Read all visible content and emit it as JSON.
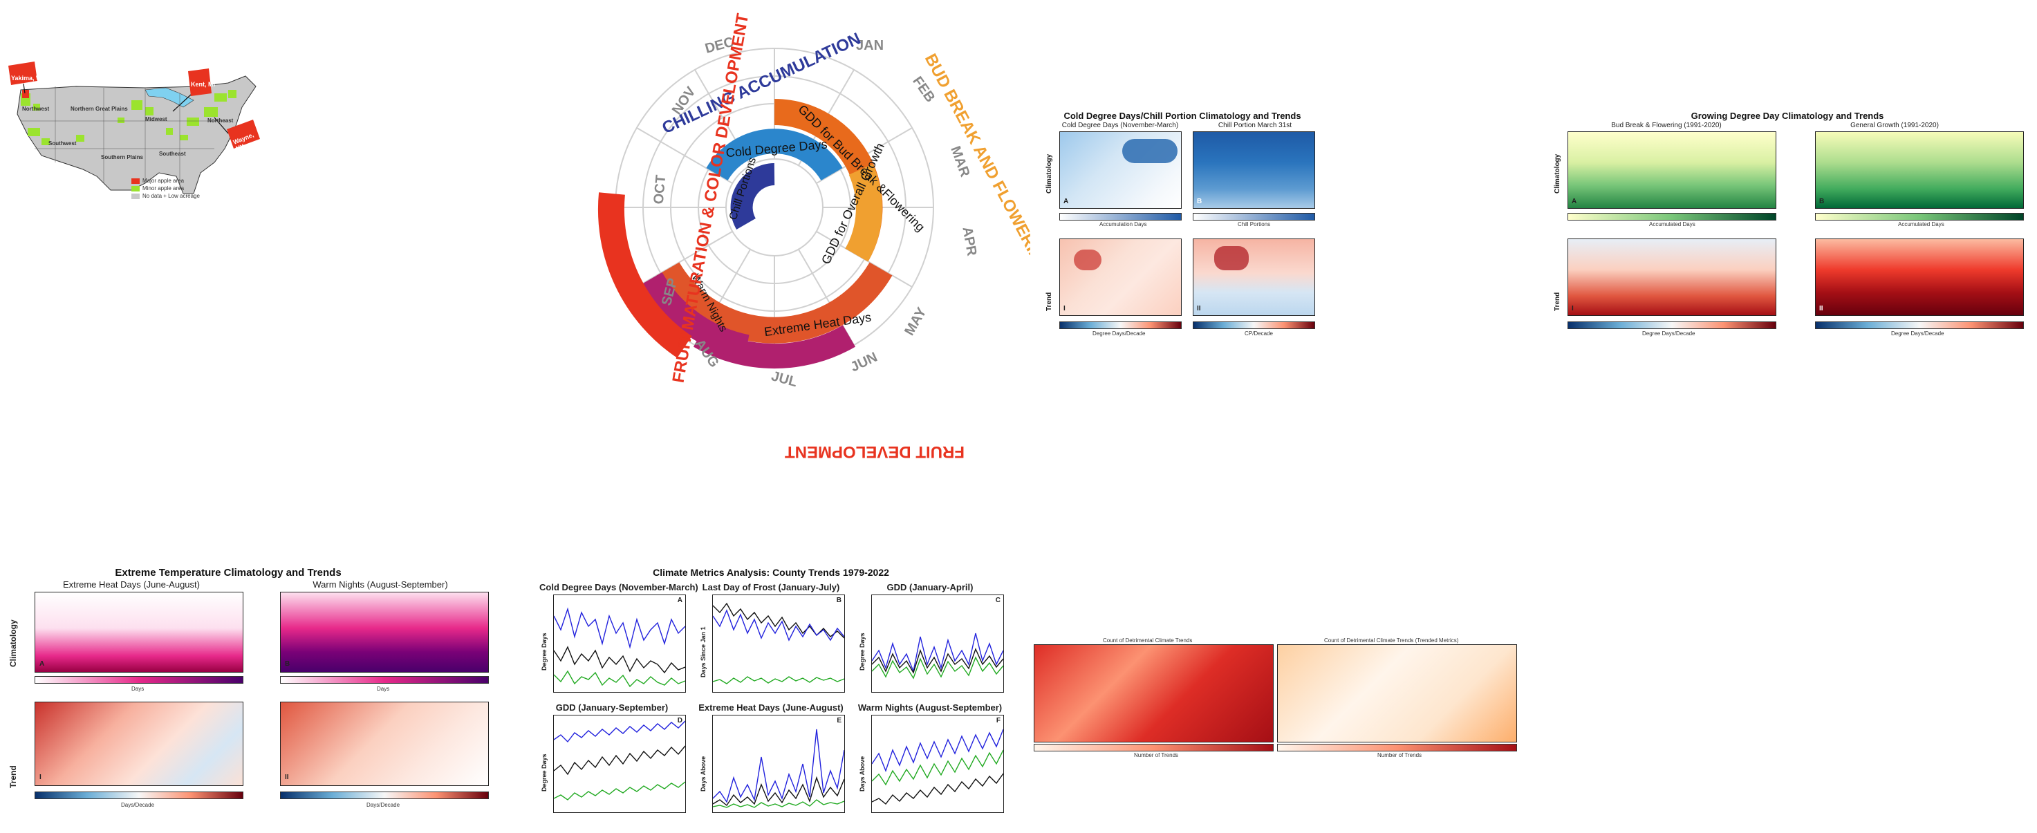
{
  "colors": {
    "red": "#e8331f",
    "lime": "#9be32e",
    "grey": "#c8c8c8",
    "lake": "#7fd1f0",
    "blue_dark": "#1f5aa6",
    "green_dark": "#2a7f3a",
    "purple": "#5b1a6b",
    "orange": "#e65c23",
    "gold": "#f0a030",
    "magenta": "#b0206e"
  },
  "fig1": {
    "region_labels": [
      "Northwest",
      "Northern Great Plains",
      "Midwest",
      "Northeast",
      "Southwest",
      "Southern Plains",
      "Southeast"
    ],
    "callouts": [
      "Yakima, WA",
      "Kent, MI",
      "Wayne, NY"
    ],
    "legend": [
      "Major apple area",
      "Minor apple area",
      "No data + Low acreage"
    ]
  },
  "fig2": {
    "months": [
      "JAN",
      "FEB",
      "MAR",
      "APR",
      "MAY",
      "JUN",
      "JUL",
      "AUG",
      "SEP",
      "OCT",
      "NOV",
      "DEC"
    ],
    "arc_labels": [
      "Chill Portions",
      "Cold Degree Days",
      "GDD for Bud Break &Flowering",
      "GDD for Overall Growth",
      "Extreme Heat Days",
      "Warm Nights"
    ],
    "outer_titles": [
      "CHILLING ACCUMULATION",
      "BUD BREAK AND FLOWERING",
      "FRUIT DEVELOPMENT",
      "FRUIT MATURATION & COLOR DEVELOPMENT"
    ]
  },
  "fig3": {
    "title": "Cold Degree Days/Chill Portion Climatology and Trends",
    "left_title": "Cold Degree Days (November-March)",
    "right_title": "Chill Portion March 31st",
    "row_labels": [
      "Climatology",
      "Trend"
    ],
    "letters": [
      "A",
      "B",
      "I",
      "II"
    ],
    "cbar_top": [
      "Accumulation Days",
      "Chill Portions"
    ],
    "cbar_bottom": [
      "Degree Days/Decade",
      "CP/Decade"
    ]
  },
  "fig4": {
    "title": "Growing Degree Day Climatology and Trends",
    "left_title": "Bud Break & Flowering (1991-2020)",
    "right_title": "General Growth (1991-2020)",
    "row_labels": [
      "Climatology",
      "Trend"
    ],
    "letters": [
      "A",
      "B",
      "I",
      "II"
    ],
    "cbar_top": [
      "Accumulated Days",
      "Accumulated Days"
    ],
    "cbar_bottom": [
      "Degree Days/Decade",
      "Degree Days/Decade"
    ]
  },
  "fig5": {
    "title": "Extreme Temperature Climatology and Trends",
    "left_title": "Extreme Heat Days (June-August)",
    "right_title": "Warm Nights (August-September)",
    "row_labels": [
      "Climatology",
      "Trend"
    ],
    "letters": [
      "A",
      "B",
      "I",
      "II"
    ],
    "cbar_top": [
      "Days",
      "Days"
    ],
    "cbar_bottom": [
      "Days/Decade",
      "Days/Decade"
    ]
  },
  "fig6": {
    "title": "Climate Metrics Analysis: County Trends 1979-2022",
    "panels": [
      {
        "title": "Cold Degree Days (November-March)",
        "letter": "A",
        "ylabel": "Degree Days"
      },
      {
        "title": "Last Day of Frost (January-July)",
        "letter": "B",
        "ylabel": "Days Since Jan 1"
      },
      {
        "title": "GDD (January-April)",
        "letter": "C",
        "ylabel": "Degree Days"
      },
      {
        "title": "GDD (January-September)",
        "letter": "D",
        "ylabel": "Degree Days"
      },
      {
        "title": "Extreme Heat Days (June-August)",
        "letter": "E",
        "ylabel": "Days Above"
      },
      {
        "title": "Warm Nights (August-September)",
        "letter": "F",
        "ylabel": "Days Above"
      }
    ]
  },
  "fig7": {
    "left_title": "Count of Detrimental Climate Trends",
    "right_title": "Count of Detrimental Climate Trends (Trended Metrics)",
    "cbar_labels": [
      "Number of Trends",
      "Number of Trends"
    ]
  }
}
